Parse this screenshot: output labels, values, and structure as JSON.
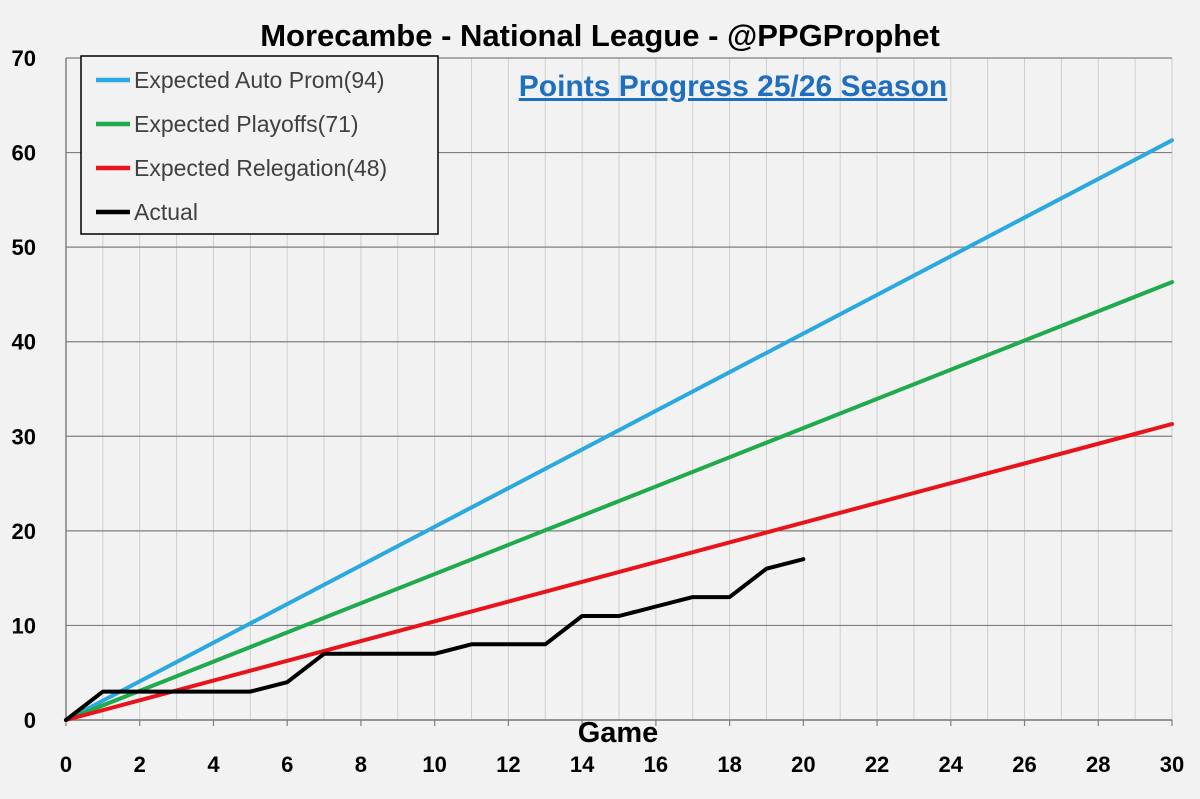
{
  "chart_data": {
    "type": "line",
    "title": "Morecambe - National League - @PPGProphet",
    "subtitle": "Points Progress 25/26 Season",
    "xlabel": "Game",
    "ylabel": "",
    "xlim": [
      0,
      30
    ],
    "ylim": [
      0,
      70
    ],
    "x_ticks": [
      "0",
      "2",
      "4",
      "6",
      "8",
      "10",
      "12",
      "14",
      "16",
      "18",
      "20",
      "22",
      "24",
      "26",
      "28",
      "30"
    ],
    "y_ticks": [
      "0",
      "10",
      "20",
      "30",
      "40",
      "50",
      "60",
      "70"
    ],
    "grid": true,
    "legend_position": "top-left",
    "series": [
      {
        "name": "Expected Auto Prom(94)",
        "color": "#2aa9e0",
        "x": [
          0,
          30
        ],
        "y": [
          0,
          61.3
        ]
      },
      {
        "name": "Expected Playoffs(71)",
        "color": "#1faa4b",
        "x": [
          0,
          30
        ],
        "y": [
          0,
          46.3
        ]
      },
      {
        "name": "Expected Relegation(48)",
        "color": "#e8141c",
        "x": [
          0,
          30
        ],
        "y": [
          0,
          31.3
        ]
      },
      {
        "name": "Actual",
        "color": "#000000",
        "x": [
          0,
          1,
          2,
          3,
          4,
          5,
          6,
          7,
          8,
          9,
          10,
          11,
          12,
          13,
          14,
          15,
          16,
          17,
          18,
          19,
          20
        ],
        "y": [
          0,
          3,
          3,
          3,
          3,
          3,
          4,
          7,
          7,
          7,
          7,
          8,
          8,
          8,
          11,
          11,
          12,
          13,
          13,
          16,
          17
        ]
      }
    ]
  }
}
